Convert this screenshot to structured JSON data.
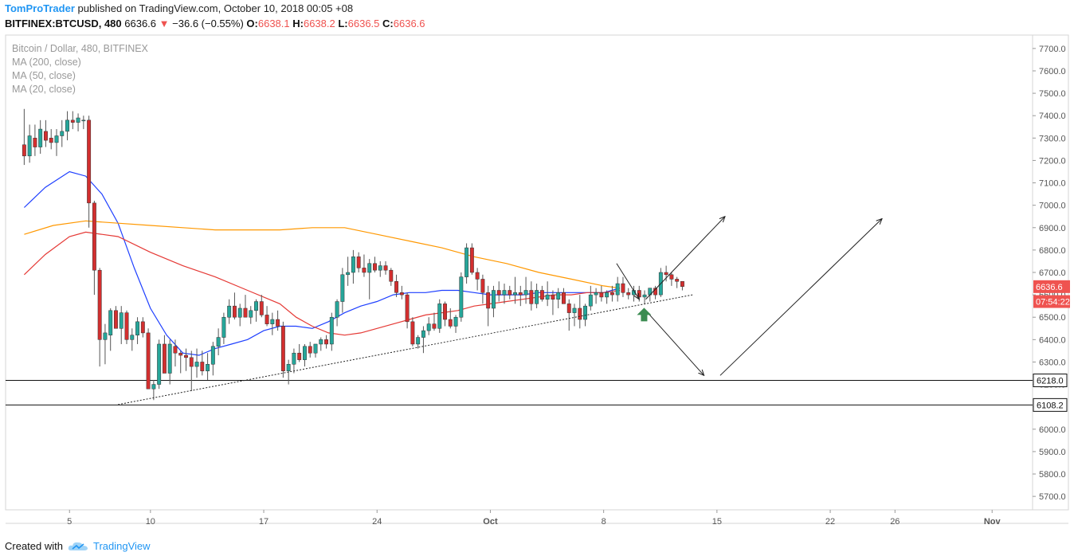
{
  "header": {
    "author": "TomProTrader",
    "published_text": "published on TradingView.com, October 10, 2018 00:05 +08",
    "symbol": "BITFINEX:BTCUSD, 480",
    "last": "6636.6",
    "change_arrow": "▼",
    "change": "−36.6 (−0.55%)",
    "o_label": "O:",
    "o_value": "6638.1",
    "h_label": "H:",
    "h_value": "6638.2",
    "l_label": "L:",
    "l_value": "6636.5",
    "c_label": "C:",
    "c_value": "6636.6"
  },
  "legend": {
    "title": "Bitcoin / Dollar, 480, BITFINEX",
    "ma200": "MA (200, close)",
    "ma50": "MA (50, close)",
    "ma20": "MA (20, close)"
  },
  "footer": {
    "created_with": "Created with",
    "brand": "TradingView",
    "logo_icon": "tradingview-cloud-icon"
  },
  "colors": {
    "up": "#26a69a",
    "down": "#d32f2f",
    "ma200": "#ff9800",
    "ma50": "#e53935",
    "ma20": "#1e3fff",
    "price_tag": "#ef5350"
  },
  "chart_data": {
    "type": "candlestick",
    "price_axis": {
      "min": 5640,
      "max": 7760,
      "ticks": [
        5700,
        5800,
        5900,
        6000,
        6100,
        6200,
        6300,
        6400,
        6500,
        6600,
        6700,
        6800,
        6900,
        7000,
        7100,
        7200,
        7300,
        7400,
        7500,
        7600,
        7700
      ],
      "tick_labels": [
        "5700.0",
        "5800.0",
        "5900.0",
        "6000.0",
        "6100.0",
        "6200.0",
        "6300.0",
        "6400.0",
        "6500.0",
        "6600.0",
        "6700.0",
        "6800.0",
        "6900.0",
        "7000.0",
        "7100.0",
        "7200.0",
        "7300.0",
        "7400.0",
        "7500.0",
        "7600.0",
        "7700.0"
      ]
    },
    "time_axis": {
      "ticks": [
        {
          "label": "5",
          "day": 5
        },
        {
          "label": "10",
          "day": 10
        },
        {
          "label": "17",
          "day": 17
        },
        {
          "label": "24",
          "day": 24
        },
        {
          "label": "Oct",
          "day": 31
        },
        {
          "label": "8",
          "day": 38
        },
        {
          "label": "15",
          "day": 45
        },
        {
          "label": "22",
          "day": 52
        },
        {
          "label": "26",
          "day": 56
        },
        {
          "label": "Nov",
          "day": 62
        }
      ]
    },
    "candles": [
      [
        7270,
        7430,
        7180,
        7220
      ],
      [
        7220,
        7360,
        7190,
        7310
      ],
      [
        7300,
        7360,
        7220,
        7260
      ],
      [
        7260,
        7380,
        7230,
        7340
      ],
      [
        7330,
        7380,
        7260,
        7290
      ],
      [
        7300,
        7340,
        7250,
        7280
      ],
      [
        7280,
        7340,
        7220,
        7310
      ],
      [
        7310,
        7380,
        7260,
        7330
      ],
      [
        7330,
        7420,
        7290,
        7380
      ],
      [
        7380,
        7420,
        7340,
        7370
      ],
      [
        7370,
        7410,
        7330,
        7390
      ],
      [
        7380,
        7400,
        7340,
        7380
      ],
      [
        7380,
        7400,
        6900,
        7010
      ],
      [
        7010,
        7020,
        6600,
        6710
      ],
      [
        6710,
        6720,
        6280,
        6400
      ],
      [
        6400,
        6470,
        6290,
        6430
      ],
      [
        6420,
        6540,
        6350,
        6530
      ],
      [
        6530,
        6550,
        6450,
        6450
      ],
      [
        6450,
        6550,
        6380,
        6520
      ],
      [
        6520,
        6530,
        6380,
        6400
      ],
      [
        6400,
        6450,
        6350,
        6420
      ],
      [
        6420,
        6500,
        6380,
        6480
      ],
      [
        6480,
        6500,
        6410,
        6430
      ],
      [
        6430,
        6450,
        6190,
        6180
      ],
      [
        6180,
        6220,
        6130,
        6200
      ],
      [
        6200,
        6400,
        6180,
        6380
      ],
      [
        6380,
        6420,
        6250,
        6250
      ],
      [
        6250,
        6400,
        6200,
        6380
      ],
      [
        6370,
        6400,
        6280,
        6340
      ],
      [
        6340,
        6350,
        6250,
        6330
      ],
      [
        6330,
        6360,
        6260,
        6320
      ],
      [
        6320,
        6350,
        6170,
        6280
      ],
      [
        6280,
        6360,
        6230,
        6300
      ],
      [
        6300,
        6350,
        6240,
        6260
      ],
      [
        6260,
        6340,
        6220,
        6290
      ],
      [
        6290,
        6390,
        6240,
        6370
      ],
      [
        6370,
        6450,
        6330,
        6410
      ],
      [
        6410,
        6520,
        6380,
        6500
      ],
      [
        6500,
        6580,
        6470,
        6550
      ],
      [
        6550,
        6610,
        6490,
        6500
      ],
      [
        6500,
        6560,
        6460,
        6540
      ],
      [
        6540,
        6600,
        6500,
        6500
      ],
      [
        6500,
        6550,
        6470,
        6530
      ],
      [
        6530,
        6580,
        6480,
        6570
      ],
      [
        6570,
        6600,
        6500,
        6510
      ],
      [
        6510,
        6550,
        6460,
        6470
      ],
      [
        6470,
        6520,
        6420,
        6490
      ],
      [
        6490,
        6530,
        6440,
        6460
      ],
      [
        6460,
        6480,
        6230,
        6260
      ],
      [
        6260,
        6310,
        6200,
        6290
      ],
      [
        6290,
        6360,
        6250,
        6340
      ],
      [
        6340,
        6380,
        6300,
        6310
      ],
      [
        6310,
        6380,
        6280,
        6370
      ],
      [
        6370,
        6390,
        6320,
        6340
      ],
      [
        6340,
        6380,
        6320,
        6380
      ],
      [
        6380,
        6410,
        6350,
        6400
      ],
      [
        6400,
        6420,
        6360,
        6380
      ],
      [
        6380,
        6520,
        6350,
        6500
      ],
      [
        6500,
        6580,
        6460,
        6570
      ],
      [
        6570,
        6720,
        6520,
        6690
      ],
      [
        6690,
        6770,
        6640,
        6700
      ],
      [
        6700,
        6800,
        6650,
        6770
      ],
      [
        6770,
        6790,
        6700,
        6720
      ],
      [
        6720,
        6780,
        6680,
        6700
      ],
      [
        6700,
        6760,
        6580,
        6740
      ],
      [
        6740,
        6770,
        6700,
        6710
      ],
      [
        6710,
        6750,
        6680,
        6730
      ],
      [
        6730,
        6750,
        6690,
        6710
      ],
      [
        6710,
        6720,
        6640,
        6660
      ],
      [
        6660,
        6690,
        6590,
        6610
      ],
      [
        6610,
        6640,
        6580,
        6600
      ],
      [
        6600,
        6610,
        6450,
        6480
      ],
      [
        6480,
        6500,
        6370,
        6380
      ],
      [
        6380,
        6420,
        6360,
        6410
      ],
      [
        6410,
        6460,
        6340,
        6440
      ],
      [
        6440,
        6500,
        6420,
        6470
      ],
      [
        6470,
        6520,
        6440,
        6450
      ],
      [
        6450,
        6580,
        6430,
        6560
      ],
      [
        6560,
        6570,
        6460,
        6490
      ],
      [
        6490,
        6540,
        6450,
        6460
      ],
      [
        6460,
        6510,
        6430,
        6500
      ],
      [
        6500,
        6700,
        6480,
        6680
      ],
      [
        6680,
        6830,
        6650,
        6810
      ],
      [
        6810,
        6830,
        6690,
        6700
      ],
      [
        6700,
        6720,
        6620,
        6670
      ],
      [
        6670,
        6690,
        6560,
        6610
      ],
      [
        6610,
        6640,
        6460,
        6540
      ],
      [
        6540,
        6640,
        6500,
        6620
      ],
      [
        6620,
        6660,
        6570,
        6600
      ],
      [
        6600,
        6650,
        6560,
        6620
      ],
      [
        6620,
        6640,
        6580,
        6600
      ],
      [
        6600,
        6680,
        6560,
        6610
      ],
      [
        6610,
        6640,
        6550,
        6600
      ],
      [
        6600,
        6680,
        6560,
        6620
      ],
      [
        6620,
        6660,
        6530,
        6560
      ],
      [
        6560,
        6650,
        6540,
        6620
      ],
      [
        6620,
        6640,
        6570,
        6580
      ],
      [
        6580,
        6660,
        6550,
        6600
      ],
      [
        6600,
        6620,
        6510,
        6580
      ],
      [
        6580,
        6630,
        6540,
        6610
      ],
      [
        6610,
        6630,
        6560,
        6560
      ],
      [
        6560,
        6580,
        6440,
        6520
      ],
      [
        6520,
        6560,
        6460,
        6540
      ],
      [
        6540,
        6600,
        6450,
        6490
      ],
      [
        6490,
        6560,
        6460,
        6550
      ],
      [
        6550,
        6640,
        6530,
        6600
      ],
      [
        6600,
        6630,
        6560,
        6610
      ],
      [
        6610,
        6640,
        6570,
        6590
      ],
      [
        6590,
        6620,
        6560,
        6610
      ],
      [
        6610,
        6640,
        6570,
        6600
      ],
      [
        6600,
        6680,
        6570,
        6650
      ],
      [
        6650,
        6680,
        6590,
        6610
      ],
      [
        6610,
        6630,
        6580,
        6600
      ],
      [
        6600,
        6640,
        6570,
        6620
      ],
      [
        6620,
        6640,
        6570,
        6590
      ],
      [
        6590,
        6620,
        6560,
        6600
      ],
      [
        6600,
        6630,
        6570,
        6630
      ],
      [
        6630,
        6640,
        6580,
        6600
      ],
      [
        6600,
        6720,
        6590,
        6700
      ],
      [
        6700,
        6730,
        6660,
        6690
      ],
      [
        6690,
        6700,
        6640,
        6670
      ],
      [
        6670,
        6680,
        6630,
        6660
      ],
      [
        6660,
        6660,
        6620,
        6637
      ]
    ],
    "candle_x_start_day": 2.2,
    "candle_spacing_days": 0.3333,
    "ma_overlays": [
      {
        "name": "MA (20, close)",
        "color": "#1e3fff",
        "points": [
          [
            2.2,
            6990
          ],
          [
            3.5,
            7080
          ],
          [
            5,
            7150
          ],
          [
            6,
            7130
          ],
          [
            7,
            7050
          ],
          [
            8,
            6920
          ],
          [
            9,
            6720
          ],
          [
            10,
            6540
          ],
          [
            11,
            6420
          ],
          [
            12,
            6340
          ],
          [
            13,
            6330
          ],
          [
            14,
            6360
          ],
          [
            15,
            6380
          ],
          [
            16,
            6400
          ],
          [
            17,
            6440
          ],
          [
            18,
            6460
          ],
          [
            19,
            6460
          ],
          [
            20,
            6450
          ],
          [
            21,
            6480
          ],
          [
            22,
            6520
          ],
          [
            23,
            6550
          ],
          [
            24,
            6570
          ],
          [
            25,
            6600
          ],
          [
            26,
            6610
          ],
          [
            27,
            6610
          ],
          [
            28,
            6620
          ],
          [
            29,
            6620
          ],
          [
            30,
            6610
          ],
          [
            31,
            6600
          ],
          [
            32,
            6600
          ],
          [
            33,
            6600
          ],
          [
            34,
            6610
          ],
          [
            35,
            6610
          ],
          [
            36,
            6610
          ],
          [
            37,
            6610
          ],
          [
            38,
            6610
          ],
          [
            39,
            6630
          ]
        ]
      },
      {
        "name": "MA (50, close)",
        "color": "#e53935",
        "points": [
          [
            2.2,
            6690
          ],
          [
            3.5,
            6780
          ],
          [
            5,
            6860
          ],
          [
            6,
            6880
          ],
          [
            8,
            6860
          ],
          [
            10,
            6790
          ],
          [
            12,
            6730
          ],
          [
            14,
            6680
          ],
          [
            16,
            6620
          ],
          [
            18,
            6560
          ],
          [
            19,
            6500
          ],
          [
            20,
            6460
          ],
          [
            21,
            6430
          ],
          [
            22,
            6420
          ],
          [
            23,
            6430
          ],
          [
            24,
            6450
          ],
          [
            25,
            6470
          ],
          [
            26,
            6490
          ],
          [
            27,
            6510
          ],
          [
            28,
            6520
          ],
          [
            29,
            6530
          ],
          [
            30,
            6550
          ],
          [
            31,
            6560
          ],
          [
            32,
            6570
          ],
          [
            33,
            6580
          ],
          [
            34,
            6590
          ],
          [
            35,
            6600
          ],
          [
            36,
            6600
          ],
          [
            37,
            6610
          ],
          [
            38,
            6610
          ],
          [
            39,
            6620
          ]
        ]
      },
      {
        "name": "MA (200, close)",
        "color": "#ff9800",
        "points": [
          [
            2.2,
            6870
          ],
          [
            4,
            6910
          ],
          [
            6,
            6930
          ],
          [
            8,
            6920
          ],
          [
            10,
            6910
          ],
          [
            12,
            6900
          ],
          [
            14,
            6890
          ],
          [
            16,
            6890
          ],
          [
            18,
            6890
          ],
          [
            20,
            6900
          ],
          [
            22,
            6900
          ],
          [
            24,
            6870
          ],
          [
            26,
            6840
          ],
          [
            28,
            6810
          ],
          [
            30,
            6770
          ],
          [
            32,
            6740
          ],
          [
            34,
            6700
          ],
          [
            36,
            6670
          ],
          [
            38,
            6640
          ],
          [
            39,
            6630
          ]
        ]
      }
    ],
    "horizontal_levels": [
      {
        "value": 6218.0,
        "label": "6218.0"
      },
      {
        "value": 6108.2,
        "label": "6108.2"
      }
    ],
    "price_tags": [
      {
        "value": 6636.6,
        "label": "6636.6",
        "color": "#ef5350"
      },
      {
        "value": 6570,
        "label": "07:54:22",
        "color": "#ef5350"
      }
    ],
    "trendline": {
      "from": [
        8,
        6110
      ],
      "to": [
        43.5,
        6600
      ]
    },
    "scenario_arrows": [
      {
        "from": [
          38.8,
          6740
        ],
        "to": [
          40.2,
          6580
        ]
      },
      {
        "from": [
          40.6,
          6580
        ],
        "to": [
          45.5,
          6950
        ]
      },
      {
        "from": [
          40.6,
          6530
        ],
        "to": [
          44.2,
          6240
        ]
      },
      {
        "from": [
          45.2,
          6240
        ],
        "to": [
          55.2,
          6940
        ]
      }
    ],
    "up_arrow_marker": {
      "day": 40.5,
      "value": 6510,
      "color": "#3c8c52",
      "icon": "up-arrow-icon"
    }
  }
}
